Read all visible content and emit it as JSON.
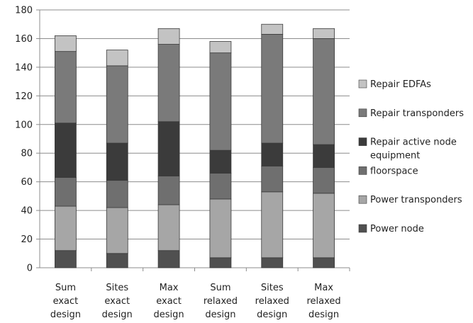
{
  "chart_data": {
    "type": "bar",
    "stacked": true,
    "categories": [
      [
        "Sum",
        "exact",
        "design"
      ],
      [
        "Sites",
        "exact",
        "design"
      ],
      [
        "Max",
        "exact",
        "design"
      ],
      [
        "Sum",
        "relaxed",
        "design"
      ],
      [
        "Sites",
        "relaxed",
        "design"
      ],
      [
        "Max",
        "relaxed",
        "design"
      ]
    ],
    "ylim": [
      0,
      180
    ],
    "yticks": [
      "0",
      "20",
      "40",
      "60",
      "80",
      "100",
      "120",
      "140",
      "160",
      "180"
    ],
    "grid": true,
    "legend_position": "right",
    "series": [
      {
        "name": "Power node",
        "color": "#505050",
        "values": [
          12,
          10,
          12,
          7,
          7,
          7
        ]
      },
      {
        "name": "Power transponders",
        "color": "#a6a6a6",
        "values": [
          31,
          32,
          32,
          41,
          46,
          45
        ]
      },
      {
        "name": "floorspace",
        "color": "#6f6f6f",
        "values": [
          20,
          19,
          20,
          18,
          18,
          18
        ]
      },
      {
        "name": "Repair active node equipment",
        "color": "#3b3b3b",
        "values": [
          38,
          26,
          38,
          16,
          16,
          16
        ]
      },
      {
        "name": "Repair transponders",
        "color": "#7a7a7a",
        "values": [
          50,
          54,
          54,
          68,
          76,
          74
        ]
      },
      {
        "name": "Repair EDFAs",
        "color": "#c3c3c3",
        "values": [
          11,
          11,
          11,
          8,
          7,
          7
        ]
      }
    ]
  }
}
